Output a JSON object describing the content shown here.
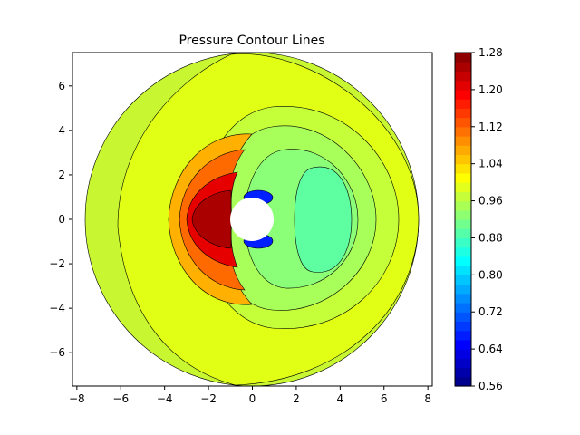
{
  "chart_data": {
    "type": "contour",
    "title": "Pressure Contour Lines",
    "xlabel": "",
    "ylabel": "",
    "xlim": [
      -8.2,
      8.2
    ],
    "ylim": [
      -7.5,
      7.5
    ],
    "x_ticks": [
      "−8",
      "−6",
      "−4",
      "−2",
      "0",
      "2",
      "4",
      "6",
      "8"
    ],
    "x_tick_values": [
      -8,
      -6,
      -4,
      -2,
      0,
      2,
      4,
      6,
      8
    ],
    "y_ticks": [
      "−6",
      "−4",
      "−2",
      "0",
      "2",
      "4",
      "6"
    ],
    "y_tick_values": [
      -6,
      -4,
      -2,
      0,
      2,
      4,
      6
    ],
    "domain_outer_radius": 7.5,
    "cylinder_radius": 1.0,
    "colorbar": {
      "colormap": "jet",
      "min": 0.56,
      "max": 1.28,
      "tick_labels": [
        "0.56",
        "0.64",
        "0.72",
        "0.80",
        "0.88",
        "0.96",
        "1.04",
        "1.12",
        "1.20",
        "1.28"
      ],
      "tick_values": [
        0.56,
        0.64,
        0.72,
        0.8,
        0.88,
        0.96,
        1.04,
        1.12,
        1.2,
        1.28
      ]
    },
    "grid": false,
    "legend": "none"
  }
}
